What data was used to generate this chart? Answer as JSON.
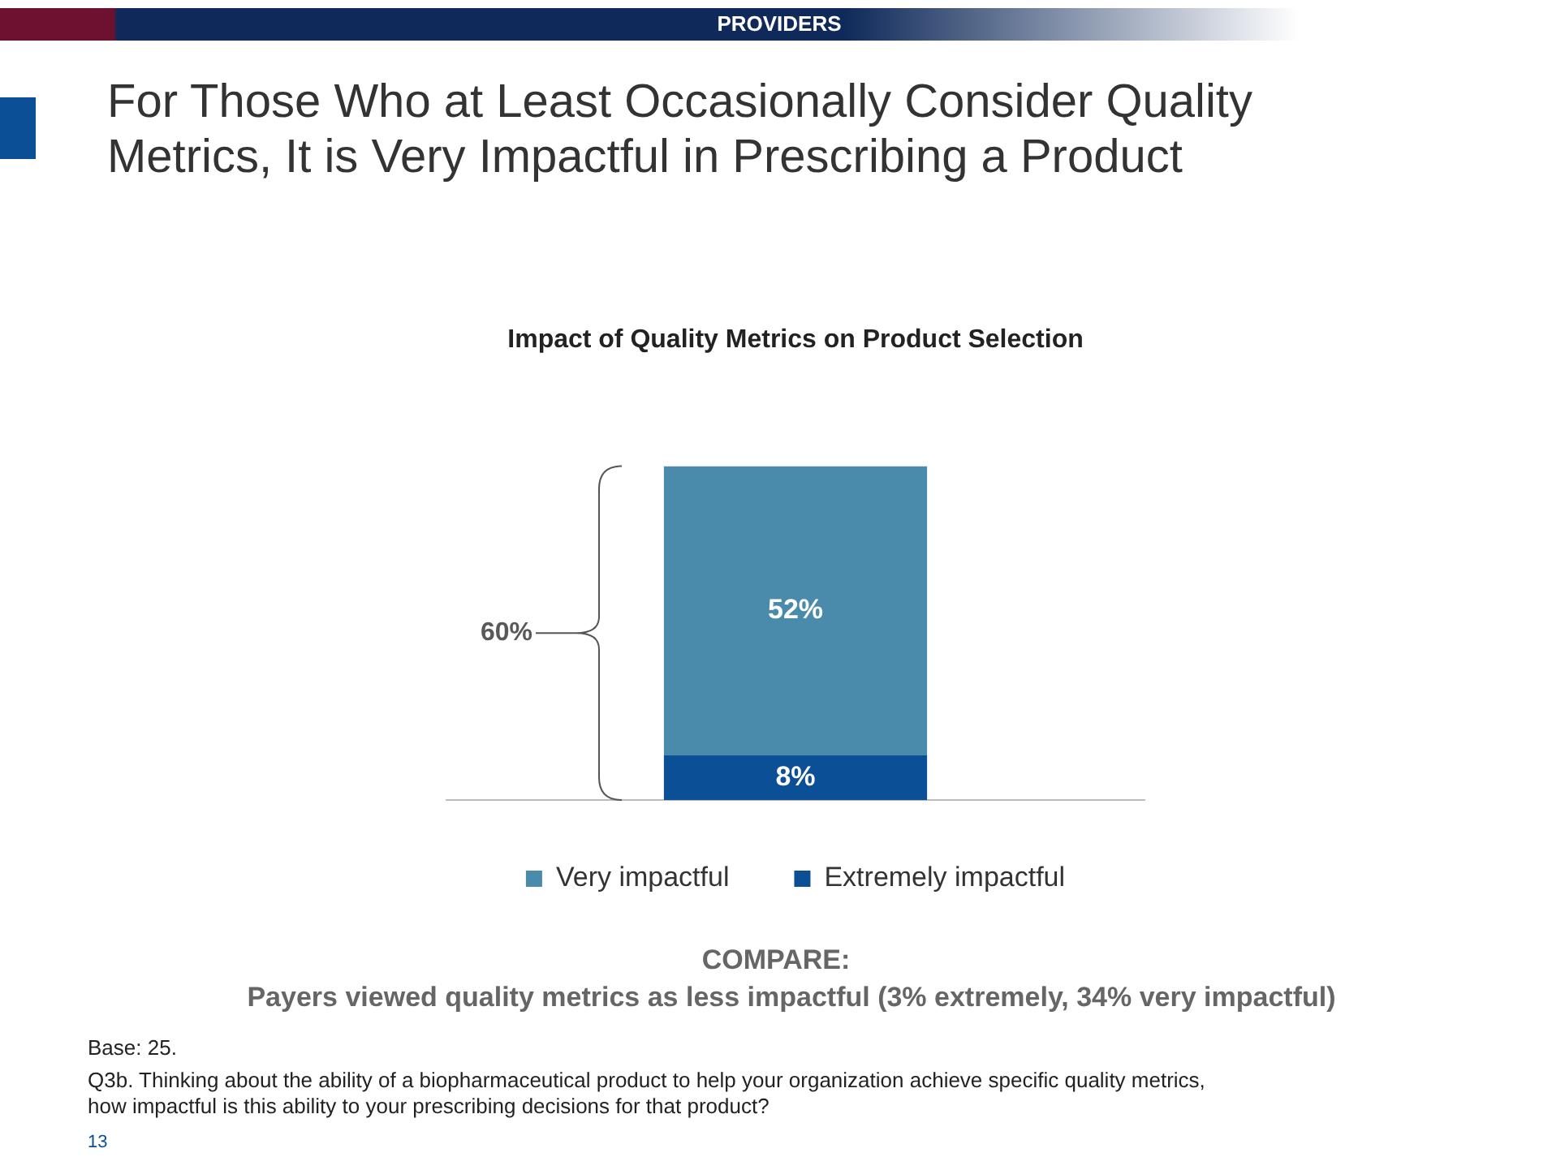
{
  "chart_data": {
    "type": "bar",
    "title": "Impact of Quality Metrics on Product Selection",
    "stacked": true,
    "categories": [
      null
    ],
    "series": [
      {
        "name": "Extremely impactful",
        "color": "#0b4f96",
        "values": [
          8
        ],
        "value_labels": [
          "8%"
        ]
      },
      {
        "name": "Very impactful",
        "color": "#4a8aab",
        "values": [
          52
        ],
        "value_labels": [
          "52%"
        ]
      }
    ],
    "legend": "bottom",
    "tick_labels": false,
    "grid": false,
    "annotations": [
      "PROVIDERS",
      "For Those Who at Least Occasionally Consider Quality Metrics, It is Very Impactful in Prescribing a Product",
      "COMPARE:",
      "Payers viewed quality metrics as less impactful (3% extremely, 34% very impactful)",
      "Base: 25.",
      "Q3b. Thinking about the ability of a biopharmaceutical product to help your organization achieve specific quality metrics, how impactful is this ability to your prescribing decisions for that product?",
      "13",
      "60%"
    ]
  }
}
